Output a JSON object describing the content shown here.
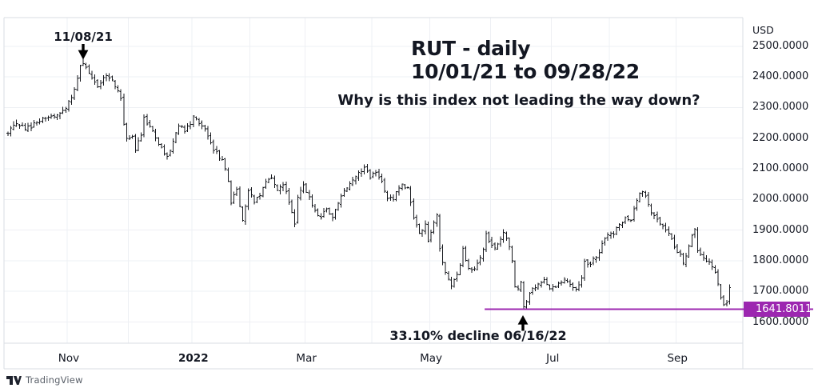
{
  "header": {
    "currency": "USD"
  },
  "title": {
    "line1": "RUT - daily",
    "line2": "10/01/21 to 09/28/22",
    "subtitle": "Why is this index not leading the way down?"
  },
  "annotations": {
    "peak": {
      "label": "11/08/21"
    },
    "trough": {
      "label": "33.10% decline 06/16/22"
    }
  },
  "price_line": {
    "value_label": "1641.8011",
    "price": 1641.8011,
    "starts_at_bar": 165
  },
  "watermark": {
    "brand": "TradingView"
  },
  "colors": {
    "price_line": "#9c27b0",
    "price_label_text": "#ffffff",
    "bars": "#15171c",
    "grid": "#eef0f4",
    "border": "#dadde3",
    "axis_text": "#131722",
    "logo": "#1e222d"
  },
  "chart_data": {
    "type": "ohlc-bar",
    "symbol": "RUT",
    "timeframe": "daily",
    "date_range": "10/01/21 to 09/28/22",
    "ylabel": "USD",
    "bar_count": 250,
    "ylim": [
      1560,
      2560
    ],
    "grid": true,
    "y_ticks": [
      {
        "label": "2500.0000",
        "value": 2500
      },
      {
        "label": "2400.0000",
        "value": 2400
      },
      {
        "label": "2300.0000",
        "value": 2300
      },
      {
        "label": "2200.0000",
        "value": 2200
      },
      {
        "label": "2100.0000",
        "value": 2100
      },
      {
        "label": "2000.0000",
        "value": 2000
      },
      {
        "label": "1900.0000",
        "value": 1900
      },
      {
        "label": "1800.0000",
        "value": 1800
      },
      {
        "label": "1700.0000",
        "value": 1700
      },
      {
        "label": "1600.0000",
        "value": 1600
      }
    ],
    "x_ticks": [
      {
        "label": "Nov",
        "bar": 21,
        "bold": false
      },
      {
        "label": "2022",
        "bar": 64,
        "bold": true
      },
      {
        "label": "Mar",
        "bar": 103,
        "bold": false
      },
      {
        "label": "May",
        "bar": 146,
        "bold": false
      },
      {
        "label": "Jul",
        "bar": 188,
        "bold": false
      },
      {
        "label": "Sep",
        "bar": 231,
        "bold": false
      }
    ],
    "month_start_bars": [
      21,
      42,
      64,
      84,
      103,
      126,
      146,
      167,
      188,
      208,
      231
    ],
    "key_points": {
      "high": {
        "bar": 26,
        "date": "11/08/21",
        "price": 2458.9
      },
      "low": {
        "bar": 178,
        "date": "06/16/22",
        "price": 1641.8011,
        "decline_pct": "33.10%"
      }
    },
    "close_anchors": [
      [
        0,
        2215
      ],
      [
        3,
        2248
      ],
      [
        6,
        2228
      ],
      [
        10,
        2252
      ],
      [
        14,
        2268
      ],
      [
        18,
        2282
      ],
      [
        20,
        2297
      ],
      [
        23,
        2360
      ],
      [
        25,
        2437
      ],
      [
        26,
        2443
      ],
      [
        28,
        2412
      ],
      [
        31,
        2368
      ],
      [
        34,
        2404
      ],
      [
        36,
        2390
      ],
      [
        39,
        2330
      ],
      [
        40,
        2245
      ],
      [
        41,
        2199
      ],
      [
        43,
        2206
      ],
      [
        44,
        2160
      ],
      [
        46,
        2210
      ],
      [
        47,
        2268
      ],
      [
        49,
        2238
      ],
      [
        51,
        2200
      ],
      [
        52,
        2180
      ],
      [
        55,
        2140
      ],
      [
        57,
        2190
      ],
      [
        59,
        2240
      ],
      [
        61,
        2222
      ],
      [
        63,
        2245
      ],
      [
        64,
        2272
      ],
      [
        66,
        2248
      ],
      [
        68,
        2230
      ],
      [
        71,
        2160
      ],
      [
        74,
        2130
      ],
      [
        76,
        2060
      ],
      [
        77,
        1988
      ],
      [
        79,
        2034
      ],
      [
        81,
        1931
      ],
      [
        83,
        2028
      ],
      [
        85,
        1990
      ],
      [
        87,
        2012
      ],
      [
        89,
        2058
      ],
      [
        91,
        2070
      ],
      [
        93,
        2030
      ],
      [
        95,
        2048
      ],
      [
        97,
        1990
      ],
      [
        98,
        1958
      ],
      [
        99,
        1920
      ],
      [
        100,
        2007
      ],
      [
        102,
        2048
      ],
      [
        104,
        2008
      ],
      [
        106,
        1964
      ],
      [
        108,
        1941
      ],
      [
        110,
        1970
      ],
      [
        112,
        1941
      ],
      [
        114,
        1988
      ],
      [
        116,
        2030
      ],
      [
        118,
        2052
      ],
      [
        120,
        2075
      ],
      [
        123,
        2105
      ],
      [
        125,
        2070
      ],
      [
        127,
        2088
      ],
      [
        129,
        2060
      ],
      [
        131,
        2004
      ],
      [
        133,
        2000
      ],
      [
        134,
        2025
      ],
      [
        136,
        2050
      ],
      [
        138,
        2038
      ],
      [
        140,
        1940
      ],
      [
        142,
        1890
      ],
      [
        144,
        1920
      ],
      [
        145,
        1864
      ],
      [
        147,
        1925
      ],
      [
        148,
        1950
      ],
      [
        149,
        1840
      ],
      [
        151,
        1762
      ],
      [
        153,
        1718
      ],
      [
        154,
        1739
      ],
      [
        156,
        1785
      ],
      [
        157,
        1840
      ],
      [
        159,
        1775
      ],
      [
        161,
        1773
      ],
      [
        162,
        1792
      ],
      [
        164,
        1838
      ],
      [
        165,
        1888
      ],
      [
        166,
        1864
      ],
      [
        168,
        1842
      ],
      [
        170,
        1870
      ],
      [
        171,
        1892
      ],
      [
        173,
        1845
      ],
      [
        174,
        1800
      ],
      [
        175,
        1715
      ],
      [
        176,
        1708
      ],
      [
        177,
        1731
      ],
      [
        178,
        1650
      ],
      [
        179,
        1666
      ],
      [
        180,
        1694
      ],
      [
        182,
        1712
      ],
      [
        184,
        1728
      ],
      [
        185,
        1738
      ],
      [
        187,
        1708
      ],
      [
        189,
        1714
      ],
      [
        190,
        1727
      ],
      [
        192,
        1740
      ],
      [
        193,
        1732
      ],
      [
        195,
        1712
      ],
      [
        196,
        1707
      ],
      [
        198,
        1744
      ],
      [
        199,
        1799
      ],
      [
        201,
        1788
      ],
      [
        202,
        1807
      ],
      [
        204,
        1826
      ],
      [
        206,
        1873
      ],
      [
        207,
        1885
      ],
      [
        209,
        1886
      ],
      [
        210,
        1908
      ],
      [
        212,
        1924
      ],
      [
        213,
        1941
      ],
      [
        215,
        1932
      ],
      [
        216,
        1969
      ],
      [
        218,
        2021
      ],
      [
        219,
        2026
      ],
      [
        221,
        1984
      ],
      [
        222,
        1957
      ],
      [
        224,
        1936
      ],
      [
        225,
        1920
      ],
      [
        227,
        1900
      ],
      [
        229,
        1872
      ],
      [
        230,
        1844
      ],
      [
        232,
        1822
      ],
      [
        233,
        1792
      ],
      [
        235,
        1848
      ],
      [
        236,
        1883
      ],
      [
        237,
        1903
      ],
      [
        238,
        1832
      ],
      [
        240,
        1810
      ],
      [
        241,
        1798
      ],
      [
        243,
        1780
      ],
      [
        244,
        1762
      ],
      [
        246,
        1680
      ],
      [
        247,
        1656
      ],
      [
        248,
        1663
      ],
      [
        249,
        1712
      ]
    ]
  }
}
